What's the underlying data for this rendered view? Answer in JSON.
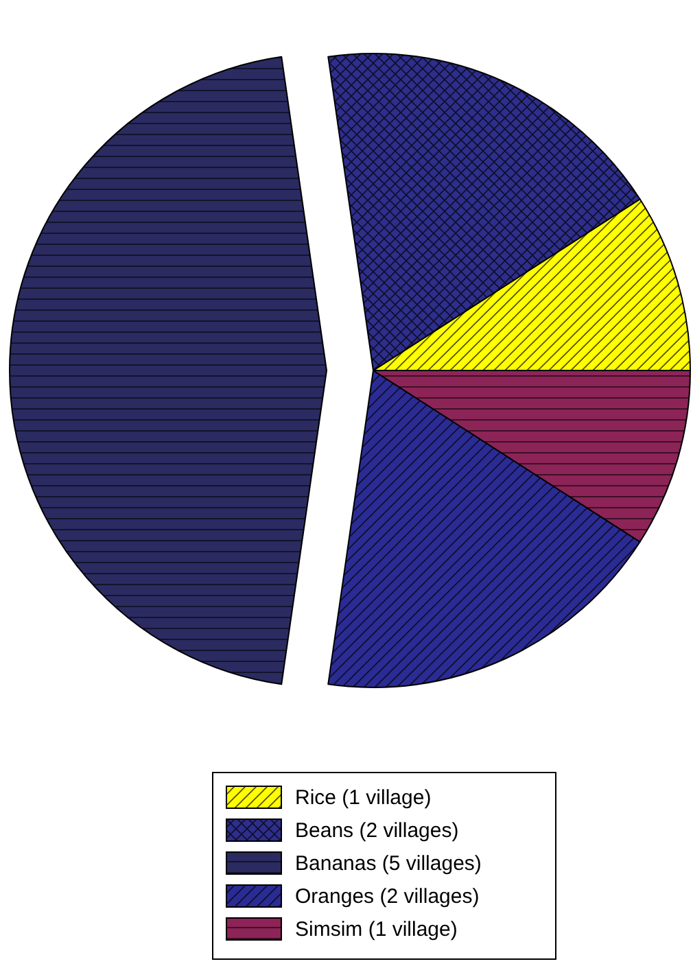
{
  "chart_data": {
    "type": "pie",
    "categories": [
      "Rice (1 village)",
      "Beans (2 villages)",
      "Bananas (5  villages)",
      "Oranges (2  villages)",
      "Simsim (1 village)"
    ],
    "values": [
      1,
      2,
      5,
      2,
      1
    ],
    "colors": [
      "#ffff00",
      "#2e2e8c",
      "#2b2b62",
      "#2b2b94",
      "#8c2457"
    ],
    "legend": "bottom"
  }
}
